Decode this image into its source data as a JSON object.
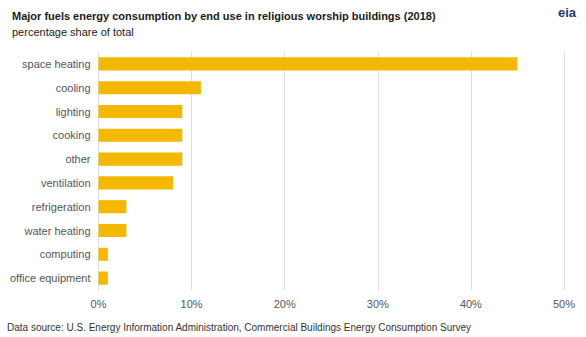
{
  "chart_data": {
    "type": "bar",
    "orientation": "horizontal",
    "title": "Major fuels energy consumption by end use in religious worship buildings (2018)",
    "subtitle": "percentage share of total",
    "categories": [
      "space heating",
      "cooling",
      "lighting",
      "cooking",
      "other",
      "ventilation",
      "refrigeration",
      "water heating",
      "computing",
      "office equipment"
    ],
    "values": [
      45,
      11,
      9,
      9,
      9,
      8,
      3,
      3,
      1,
      1
    ],
    "color": "#F5B800",
    "xlim": [
      0,
      50
    ],
    "xticks": [
      {
        "value": 0,
        "label": "0%"
      },
      {
        "value": 10,
        "label": "10%"
      },
      {
        "value": 20,
        "label": "20%"
      },
      {
        "value": 30,
        "label": "30%"
      },
      {
        "value": 40,
        "label": "40%"
      },
      {
        "value": 50,
        "label": "50%"
      }
    ],
    "grid": true,
    "annotations": [
      "eia",
      "Data source: U.S. Energy Information Administration, Commercial Buildings Energy Consumption Survey"
    ]
  }
}
